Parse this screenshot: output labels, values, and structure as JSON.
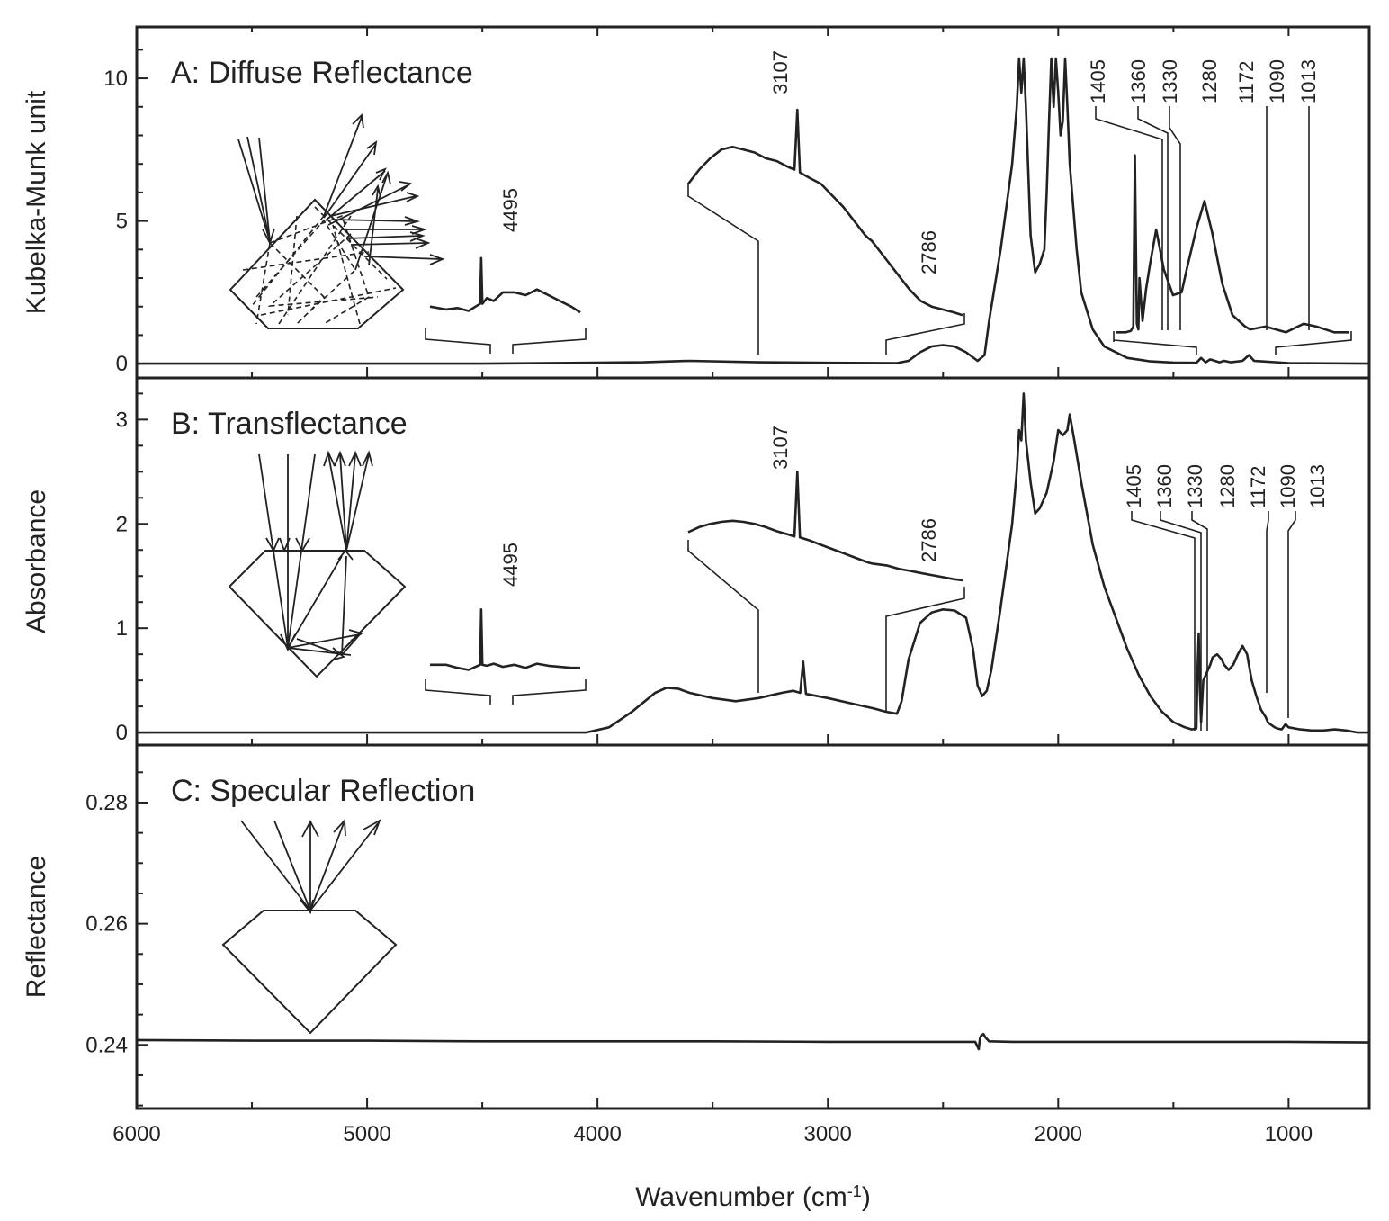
{
  "figure": {
    "xlabel": "Wavenumber (cm",
    "xlabel_sup": "-1",
    "xlabel_end": ")"
  },
  "chart_data": [
    {
      "type": "line",
      "title": "A: Diffuse Reflectance",
      "xlabel": "Wavenumber (cm-1)",
      "ylabel": "Kubelka-Munk unit",
      "xlim": [
        6000,
        650
      ],
      "ylim": [
        -0.5,
        11.8
      ],
      "yticks": [
        0,
        5,
        10
      ],
      "xticks": [
        6000,
        5000,
        4000,
        3000,
        2000,
        1000
      ],
      "peak_labels": [
        "4495",
        "3107",
        "2786",
        "1405",
        "1360",
        "1330",
        "1280",
        "1172",
        "1090",
        "1013"
      ],
      "main_series": {
        "x": [
          6000,
          4500,
          3800,
          3600,
          3300,
          3000,
          2700,
          2650,
          2600,
          2550,
          2500,
          2450,
          2400,
          2350,
          2320,
          2300,
          2250,
          2200,
          2180,
          2170,
          2160,
          2150,
          2140,
          2120,
          2100,
          2080,
          2060,
          2050,
          2040,
          2030,
          2020,
          2010,
          2000,
          1990,
          1980,
          1970,
          1960,
          1950,
          1920,
          1900,
          1850,
          1800,
          1700,
          1600,
          1500,
          1400,
          1380,
          1360,
          1340,
          1300,
          1280,
          1250,
          1200,
          1172,
          1150,
          1000,
          650
        ],
        "y": [
          0.0,
          0.0,
          0.05,
          0.1,
          0.05,
          0.03,
          0.02,
          0.1,
          0.4,
          0.6,
          0.65,
          0.6,
          0.4,
          0.1,
          0.3,
          1.5,
          4.0,
          7.0,
          9.0,
          10.7,
          9.5,
          10.7,
          9.0,
          4.5,
          3.2,
          3.5,
          4.0,
          6.0,
          8.5,
          10.7,
          9.0,
          10.7,
          9.5,
          8.0,
          8.5,
          10.7,
          9.0,
          7.0,
          4.0,
          2.5,
          1.2,
          0.6,
          0.2,
          0.08,
          0.04,
          0.03,
          0.2,
          0.05,
          0.15,
          0.05,
          0.1,
          0.05,
          0.1,
          0.3,
          0.1,
          0.02,
          0.0
        ]
      },
      "inset_1": {
        "x": [
          4720,
          4650,
          4600,
          4550,
          4520,
          4500,
          4495,
          4490,
          4470,
          4440,
          4400,
          4350,
          4300,
          4250,
          4200,
          4150,
          4100,
          4060
        ],
        "y": [
          2.0,
          1.9,
          1.95,
          1.85,
          2.0,
          2.1,
          3.7,
          2.1,
          2.3,
          2.2,
          2.5,
          2.5,
          2.4,
          2.6,
          2.4,
          2.2,
          2.0,
          1.8
        ]
      },
      "inset_2": {
        "x": [
          3600,
          3550,
          3500,
          3450,
          3400,
          3350,
          3300,
          3250,
          3200,
          3150,
          3120,
          3107,
          3095,
          3050,
          3000,
          2950,
          2900,
          2850,
          2800,
          2786,
          2770,
          2700,
          2650,
          2600,
          2550,
          2500,
          2450,
          2400,
          2360
        ],
        "y": [
          6.3,
          6.8,
          7.2,
          7.5,
          7.6,
          7.5,
          7.4,
          7.2,
          7.1,
          6.9,
          6.8,
          8.9,
          6.7,
          6.5,
          6.3,
          5.9,
          5.5,
          5.0,
          4.5,
          4.4,
          4.3,
          3.6,
          3.1,
          2.6,
          2.2,
          2.0,
          1.9,
          1.8,
          1.7
        ]
      },
      "inset_3": {
        "x": [
          1735,
          1715,
          1705,
          1700,
          1697,
          1693,
          1690,
          1688,
          1682,
          1675,
          1667,
          1655,
          1640,
          1622,
          1605,
          1595,
          1575,
          1560,
          1545,
          1525,
          1505,
          1480,
          1470,
          1440,
          1400,
          1365,
          1340,
          1305,
          1288,
          1275
        ],
        "y": [
          1.1,
          1.1,
          1.15,
          1.3,
          7.3,
          1.4,
          1.2,
          3.0,
          1.5,
          2.6,
          3.5,
          4.7,
          3.3,
          2.4,
          2.5,
          3.3,
          4.8,
          5.7,
          4.6,
          2.8,
          1.7,
          1.3,
          1.2,
          1.3,
          1.1,
          1.4,
          1.3,
          1.1,
          1.1,
          1.1
        ]
      }
    },
    {
      "type": "line",
      "title": "B: Transflectance",
      "ylabel": "Absorbance",
      "xlim": [
        6000,
        650
      ],
      "ylim": [
        -0.12,
        3.4
      ],
      "yticks": [
        0,
        1,
        2,
        3
      ],
      "peak_labels": [
        "4495",
        "3107",
        "2786",
        "1405",
        "1360",
        "1330",
        "1280",
        "1172",
        "1090",
        "1013"
      ],
      "main_series": {
        "x": [
          6000,
          5000,
          4050,
          3950,
          3850,
          3750,
          3700,
          3650,
          3600,
          3500,
          3400,
          3300,
          3200,
          3150,
          3120,
          3107,
          3095,
          3000,
          2900,
          2800,
          2750,
          2700,
          2680,
          2650,
          2600,
          2550,
          2500,
          2450,
          2400,
          2370,
          2350,
          2330,
          2310,
          2290,
          2250,
          2200,
          2180,
          2170,
          2160,
          2150,
          2140,
          2120,
          2100,
          2080,
          2050,
          2020,
          2000,
          1980,
          1960,
          1950,
          1930,
          1900,
          1850,
          1800,
          1750,
          1700,
          1650,
          1600,
          1550,
          1500,
          1450,
          1420,
          1400,
          1395,
          1390,
          1385,
          1380,
          1370,
          1360,
          1340,
          1330,
          1310,
          1290,
          1280,
          1260,
          1240,
          1220,
          1200,
          1180,
          1172,
          1160,
          1140,
          1120,
          1100,
          1090,
          1080,
          1060,
          1050,
          1030,
          1013,
          1000,
          950,
          900,
          850,
          800,
          750,
          700,
          650
        ],
        "y": [
          0.0,
          0.0,
          0.0,
          0.05,
          0.2,
          0.38,
          0.43,
          0.42,
          0.38,
          0.33,
          0.3,
          0.33,
          0.38,
          0.4,
          0.38,
          0.68,
          0.37,
          0.33,
          0.28,
          0.23,
          0.2,
          0.18,
          0.3,
          0.7,
          1.05,
          1.15,
          1.18,
          1.17,
          1.1,
          0.8,
          0.45,
          0.35,
          0.4,
          0.6,
          1.2,
          2.0,
          2.5,
          2.9,
          2.8,
          3.25,
          2.8,
          2.4,
          2.1,
          2.15,
          2.3,
          2.6,
          2.9,
          2.85,
          2.9,
          3.05,
          2.8,
          2.4,
          1.8,
          1.4,
          1.1,
          0.8,
          0.55,
          0.35,
          0.2,
          0.1,
          0.05,
          0.03,
          0.04,
          0.6,
          0.95,
          0.4,
          0.1,
          0.5,
          0.55,
          0.65,
          0.72,
          0.75,
          0.7,
          0.65,
          0.6,
          0.65,
          0.75,
          0.83,
          0.75,
          0.65,
          0.5,
          0.35,
          0.22,
          0.15,
          0.1,
          0.08,
          0.05,
          0.04,
          0.03,
          0.08,
          0.05,
          0.03,
          0.02,
          0.02,
          0.03,
          0.02,
          0.0,
          0.0
        ]
      },
      "inset_1": {
        "x": [
          4720,
          4650,
          4600,
          4550,
          4520,
          4500,
          4495,
          4490,
          4470,
          4440,
          4400,
          4350,
          4300,
          4250,
          4200,
          4150,
          4100,
          4060
        ],
        "y": [
          0.65,
          0.65,
          0.62,
          0.6,
          0.63,
          0.65,
          1.18,
          0.65,
          0.64,
          0.66,
          0.63,
          0.65,
          0.62,
          0.66,
          0.64,
          0.63,
          0.62,
          0.62
        ]
      },
      "inset_2": {
        "x": [
          3600,
          3550,
          3500,
          3450,
          3400,
          3350,
          3300,
          3250,
          3200,
          3150,
          3120,
          3107,
          3095,
          3050,
          3000,
          2950,
          2900,
          2850,
          2800,
          2786,
          2770,
          2700,
          2650,
          2600,
          2550,
          2500,
          2450,
          2400,
          2360
        ],
        "y": [
          1.92,
          1.97,
          2.0,
          2.02,
          2.03,
          2.02,
          2.0,
          1.97,
          1.93,
          1.9,
          1.88,
          2.5,
          1.87,
          1.84,
          1.8,
          1.76,
          1.72,
          1.68,
          1.64,
          1.63,
          1.62,
          1.6,
          1.57,
          1.55,
          1.53,
          1.51,
          1.49,
          1.47,
          1.46
        ]
      }
    },
    {
      "type": "line",
      "title": "C: Specular Reflection",
      "ylabel": "Reflectance",
      "xlim": [
        6000,
        650
      ],
      "ylim": [
        0.2295,
        0.2895
      ],
      "yticks": [
        0.24,
        0.26,
        0.28
      ],
      "ytick_labels": [
        "0.24",
        "0.26",
        "0.28"
      ],
      "main_series": {
        "x": [
          6000,
          5500,
          5000,
          4500,
          4000,
          3500,
          3000,
          2500,
          2360,
          2345,
          2340,
          2335,
          2325,
          2315,
          2300,
          2200,
          2000,
          1500,
          1000,
          650
        ],
        "y": [
          0.2408,
          0.2407,
          0.2407,
          0.2406,
          0.2406,
          0.2406,
          0.2405,
          0.2405,
          0.2405,
          0.2393,
          0.241,
          0.2415,
          0.2418,
          0.2412,
          0.2406,
          0.2405,
          0.2405,
          0.2405,
          0.2405,
          0.2404
        ]
      }
    }
  ]
}
